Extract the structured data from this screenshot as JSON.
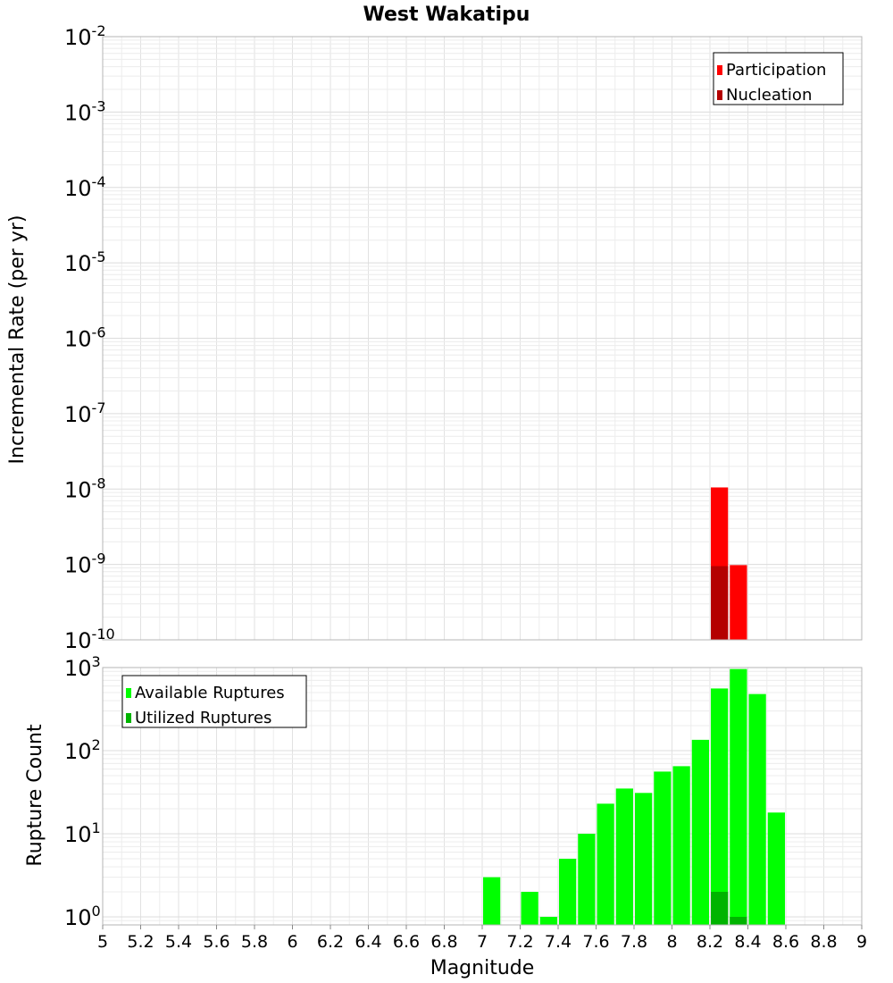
{
  "chart_data": [
    {
      "type": "bar",
      "title": "West Wakatipu",
      "xlabel": "Magnitude",
      "ylabel": "Incremental Rate (per yr)",
      "yscale": "log",
      "xlim": [
        5,
        9
      ],
      "ylim": [
        1e-10,
        0.01
      ],
      "ytick_exponents": [
        "-2",
        "-3",
        "-4",
        "-5",
        "-6",
        "-7",
        "-8",
        "-9",
        "-10"
      ],
      "legend_position": "top-right",
      "bar_width": 0.1,
      "series": [
        {
          "name": "Participation",
          "color": "#ff0000",
          "points": [
            {
              "x": 8.25,
              "y": 1.05e-08
            },
            {
              "x": 8.35,
              "y": 9.8e-10
            }
          ]
        },
        {
          "name": "Nucleation",
          "color": "#b40000",
          "points": [
            {
              "x": 8.25,
              "y": 9.5e-10
            }
          ]
        }
      ]
    },
    {
      "type": "bar",
      "xlabel": "Magnitude",
      "ylabel": "Rupture Count",
      "yscale": "log",
      "xlim": [
        5,
        9
      ],
      "ylim": [
        0.8,
        1000
      ],
      "ytick_exponents": [
        "3",
        "2",
        "1",
        "0"
      ],
      "legend_position": "top-left",
      "bar_width": 0.1,
      "xticks": [
        "5",
        "5.2",
        "5.4",
        "5.6",
        "5.8",
        "6",
        "6.2",
        "6.4",
        "6.6",
        "6.8",
        "7",
        "7.2",
        "7.4",
        "7.6",
        "7.8",
        "8",
        "8.2",
        "8.4",
        "8.6",
        "8.8",
        "9"
      ],
      "series": [
        {
          "name": "Available Ruptures",
          "color": "#00ff00",
          "points": [
            {
              "x": 7.05,
              "y": 3
            },
            {
              "x": 7.25,
              "y": 2
            },
            {
              "x": 7.35,
              "y": 1
            },
            {
              "x": 7.45,
              "y": 5
            },
            {
              "x": 7.55,
              "y": 10
            },
            {
              "x": 7.65,
              "y": 23
            },
            {
              "x": 7.75,
              "y": 35
            },
            {
              "x": 7.85,
              "y": 31
            },
            {
              "x": 7.95,
              "y": 56
            },
            {
              "x": 8.05,
              "y": 65
            },
            {
              "x": 8.15,
              "y": 135
            },
            {
              "x": 8.25,
              "y": 560
            },
            {
              "x": 8.35,
              "y": 960
            },
            {
              "x": 8.45,
              "y": 480
            },
            {
              "x": 8.55,
              "y": 18
            }
          ]
        },
        {
          "name": "Utilized Ruptures",
          "color": "#00b400",
          "points": [
            {
              "x": 8.25,
              "y": 2
            },
            {
              "x": 8.35,
              "y": 1
            }
          ]
        }
      ]
    }
  ]
}
